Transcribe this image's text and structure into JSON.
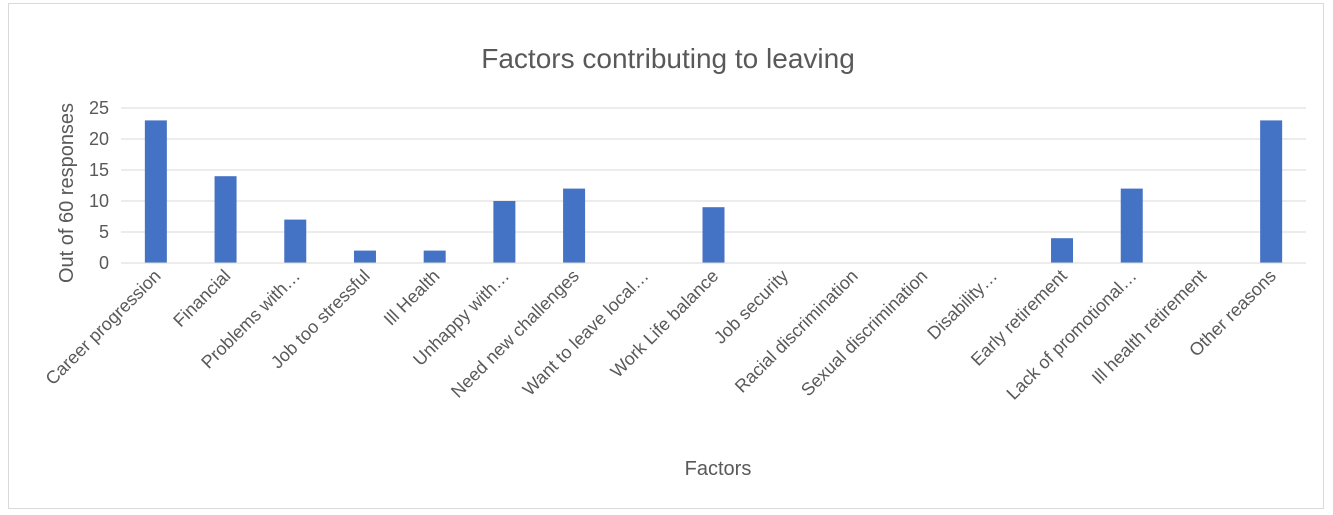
{
  "chart_data": {
    "type": "bar",
    "title": "Factors contributing to leaving",
    "xlabel": "Factors",
    "ylabel": "Out of 60 responses",
    "ylim": [
      0,
      25
    ],
    "yticks": [
      0,
      5,
      10,
      15,
      20,
      25
    ],
    "grid": true,
    "legend": "none",
    "bar_color": "#4472C4",
    "categories": [
      "Career progression",
      "Financial",
      "Problems with…",
      "Job too stressful",
      "Ill Health",
      "Unhappy with…",
      "Need new challenges",
      "Want to leave local…",
      "Work Life balance",
      "Job security",
      "Racial discrimination",
      "Sexual discrimination",
      "Disability…",
      "Early retirement",
      "Lack of promotional…",
      "Ill health retirement",
      "Other reasons"
    ],
    "values": [
      23,
      14,
      7,
      2,
      2,
      10,
      12,
      0,
      9,
      0,
      0,
      0,
      0,
      4,
      12,
      0,
      23
    ]
  }
}
